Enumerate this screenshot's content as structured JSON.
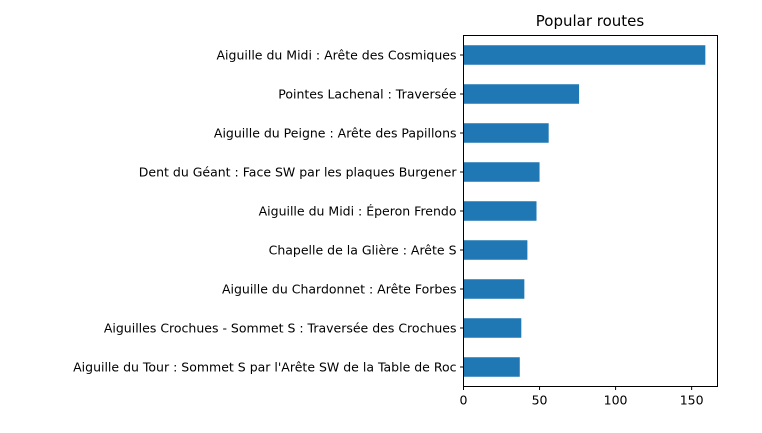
{
  "chart_data": {
    "type": "bar",
    "orientation": "horizontal",
    "title": "Popular routes",
    "xlabel": "",
    "ylabel": "",
    "xlim": [
      0,
      167
    ],
    "xticks": [
      0,
      50,
      100,
      150
    ],
    "grid": false,
    "bar_color": "#1f77b4",
    "categories": [
      "Aiguille du Midi : Arête des Cosmiques",
      "Pointes Lachenal : Traversée",
      "Aiguille du Peigne : Arête des Papillons",
      "Dent du Géant : Face SW par les plaques Burgener",
      "Aiguille du Midi : Éperon Frendo",
      "Chapelle de la Glière : Arête S",
      "Aiguille du Chardonnet : Arête Forbes",
      "Aiguilles Crochues - Sommet S : Traversée des Crochues",
      "Aiguille du Tour : Sommet S par l'Arête SW de la Table de Roc"
    ],
    "values": [
      159,
      76,
      56,
      50,
      48,
      42,
      40,
      38,
      37
    ]
  }
}
